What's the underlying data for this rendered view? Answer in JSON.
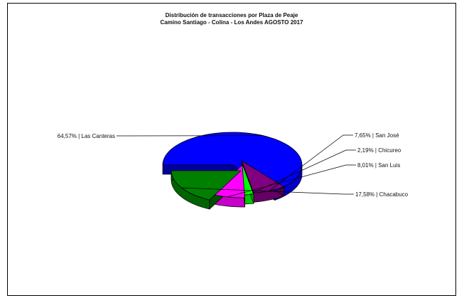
{
  "chart_data": {
    "type": "pie",
    "title": "Distribución de transacciones por Plaza de Peaje",
    "subtitle": "Camino Santiago - Colina - Los Andes AGOSTO 2017",
    "slices": [
      {
        "label": "64,57% | Las Canteras",
        "value": 64.57,
        "color": "#0000ff"
      },
      {
        "label": "7,65% | San José",
        "value": 7.65,
        "color": "#800080"
      },
      {
        "label": "2,19% | Chicureo",
        "value": 2.19,
        "color": "#00ff00"
      },
      {
        "label": "8,01% | San Luis",
        "value": 8.01,
        "color": "#ff00ff"
      },
      {
        "label": "17,58% | Chacabuco",
        "value": 17.58,
        "color": "#008000"
      }
    ]
  }
}
